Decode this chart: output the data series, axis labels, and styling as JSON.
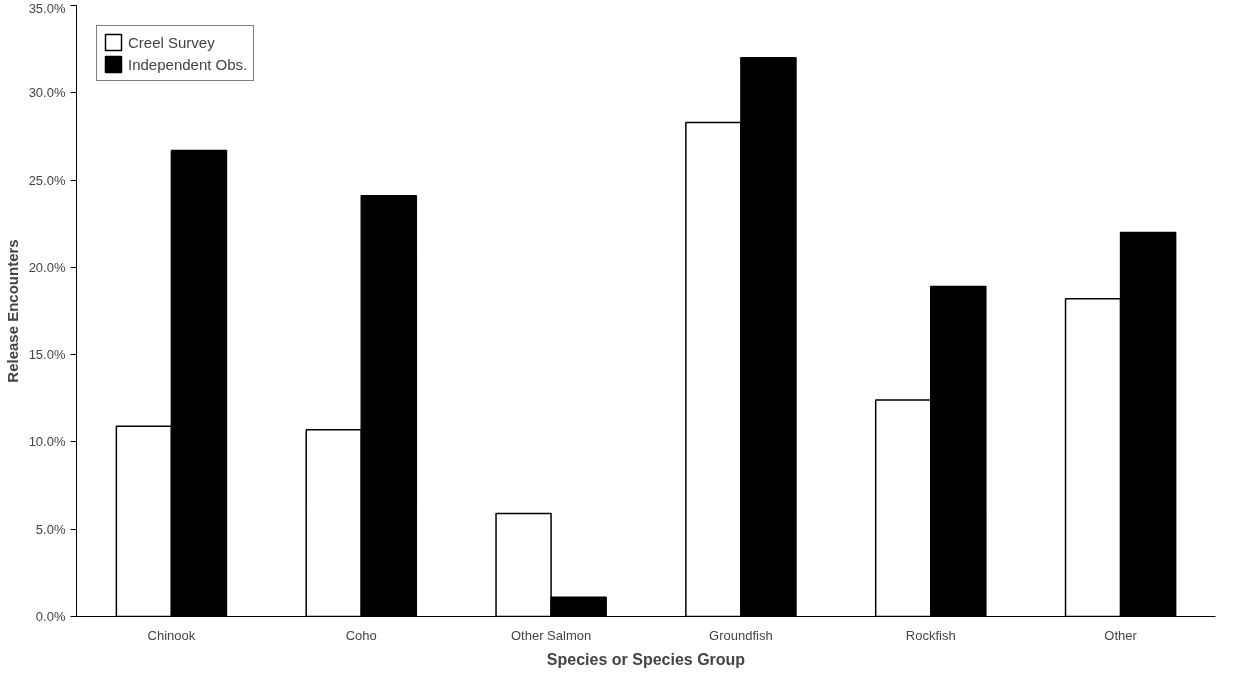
{
  "chart_data": {
    "type": "bar",
    "xlabel": "Species or Species Group",
    "ylabel": "Release Encounters",
    "categories": [
      "Chinook",
      "Coho",
      "Other Salmon",
      "Groundfish",
      "Rockfish",
      "Other"
    ],
    "series": [
      {
        "name": "Creel Survey",
        "color": "#ffffff",
        "values": [
          10.9,
          10.7,
          5.9,
          28.3,
          12.4,
          18.2
        ]
      },
      {
        "name": "Independent Obs.",
        "color": "#000000",
        "values": [
          26.7,
          24.1,
          1.1,
          32.0,
          18.9,
          22.0
        ]
      }
    ],
    "ylim": [
      0,
      35
    ],
    "yticks": [
      {
        "value": 0,
        "label": "0.0%"
      },
      {
        "value": 5,
        "label": "5.0%"
      },
      {
        "value": 10,
        "label": "10.0%"
      },
      {
        "value": 15,
        "label": "15.0%"
      },
      {
        "value": 20,
        "label": "20.0%"
      },
      {
        "value": 25,
        "label": "25.0%"
      },
      {
        "value": 30,
        "label": "30.0%"
      },
      {
        "value": 35,
        "label": "35.0%"
      }
    ],
    "legend": "top left",
    "grid": false
  }
}
